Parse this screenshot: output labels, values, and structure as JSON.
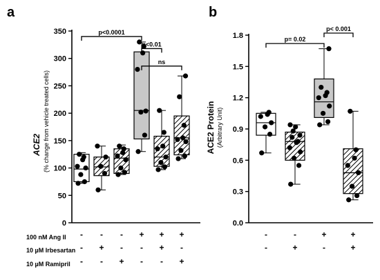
{
  "colors": {
    "ink": "#000000",
    "gray_fill": "#c8c8c8",
    "white_fill": "#ffffff",
    "hatch_fill": "#ffffff"
  },
  "conditions": {
    "labels": [
      "100 nM Ang II",
      "10 µM Irbesartan",
      "10 µM Ramipril"
    ],
    "panel_a": [
      [
        "-",
        "-",
        "-",
        "+",
        "+",
        "+"
      ],
      [
        "-",
        "+",
        "-",
        "-",
        "+",
        "-"
      ],
      [
        "-",
        "-",
        "+",
        "-",
        "-",
        "+"
      ]
    ],
    "panel_b": [
      [
        "-",
        "-",
        "+",
        "+"
      ],
      [
        "-",
        "+",
        "-",
        "+"
      ]
    ]
  },
  "chart_data": [
    {
      "panel": "a",
      "type": "box",
      "ylabel": "ACE2",
      "ylabel_sub": "(% change from vehicle treated cells)",
      "ylim": [
        0,
        350
      ],
      "yticks": [
        0,
        50,
        100,
        150,
        200,
        250,
        300,
        350
      ],
      "boxes": [
        {
          "style": "white",
          "min": 72,
          "q1": 75,
          "median": 98,
          "q3": 125,
          "max": 128,
          "points": [
            72,
            75,
            88,
            100,
            103,
            115,
            120,
            125
          ]
        },
        {
          "style": "hatch",
          "min": 60,
          "q1": 86,
          "median": 102,
          "q3": 120,
          "max": 140,
          "points": [
            60,
            90,
            103,
            120,
            140
          ]
        },
        {
          "style": "hatch",
          "min": 88,
          "q1": 90,
          "median": 118,
          "q3": 135,
          "max": 142,
          "points": [
            88,
            92,
            100,
            115,
            122,
            128,
            135,
            140
          ]
        },
        {
          "style": "gray",
          "min": 130,
          "q1": 153,
          "median": 205,
          "q3": 312,
          "max": 330,
          "points": [
            130,
            160,
            202,
            204,
            280,
            310,
            322,
            330
          ]
        },
        {
          "style": "hatch",
          "min": 97,
          "q1": 103,
          "median": 120,
          "q3": 158,
          "max": 205,
          "points": [
            97,
            102,
            110,
            120,
            135,
            140,
            165,
            205
          ]
        },
        {
          "style": "hatch",
          "min": 117,
          "q1": 124,
          "median": 155,
          "q3": 195,
          "max": 268,
          "points": [
            117,
            122,
            132,
            148,
            152,
            155,
            178,
            230,
            268
          ]
        }
      ],
      "annotations": [
        {
          "text": "p<0.0001",
          "from": 1,
          "to": 4,
          "y": 340
        },
        {
          "text": "p<0.01",
          "from": 4,
          "to": 5,
          "y": 318
        },
        {
          "text": "ns",
          "from": 4,
          "to": 6,
          "y": 286
        }
      ]
    },
    {
      "panel": "b",
      "type": "box",
      "ylabel": "ACE2 Protein",
      "ylabel_sub": "(Arbitrary Unit)",
      "ylim": [
        0,
        1.8
      ],
      "yticks": [
        "0.0",
        "0.3",
        "0.6",
        "0.9",
        "1.2",
        "1.5",
        "1.8"
      ],
      "boxes": [
        {
          "style": "white",
          "min": 0.67,
          "q1": 0.84,
          "median": 0.96,
          "q3": 1.05,
          "max": 1.06,
          "points": [
            0.67,
            0.85,
            0.92,
            0.96,
            1.02,
            1.04,
            1.06
          ]
        },
        {
          "style": "hatch",
          "min": 0.37,
          "q1": 0.6,
          "median": 0.78,
          "q3": 0.87,
          "max": 0.94,
          "points": [
            0.37,
            0.55,
            0.62,
            0.68,
            0.72,
            0.77,
            0.78,
            0.82,
            0.84,
            0.88,
            0.92,
            0.94
          ]
        },
        {
          "style": "gray",
          "min": 0.94,
          "q1": 1.01,
          "median": 1.16,
          "q3": 1.38,
          "max": 1.67,
          "points": [
            0.94,
            0.97,
            1.05,
            1.12,
            1.2,
            1.22,
            1.25,
            1.3,
            1.67
          ]
        },
        {
          "style": "hatch",
          "min": 0.22,
          "q1": 0.28,
          "median": 0.48,
          "q3": 0.71,
          "max": 1.07,
          "points": [
            0.22,
            0.26,
            0.35,
            0.48,
            0.55,
            0.62,
            0.7,
            1.07
          ]
        }
      ],
      "annotations": [
        {
          "text": "p= 0.02",
          "from": 1,
          "to": 3,
          "y": 1.72
        },
        {
          "text": "p< 0.001",
          "from": 3,
          "to": 4,
          "y": 1.82
        }
      ]
    }
  ],
  "panel_labels": [
    "a",
    "b"
  ]
}
